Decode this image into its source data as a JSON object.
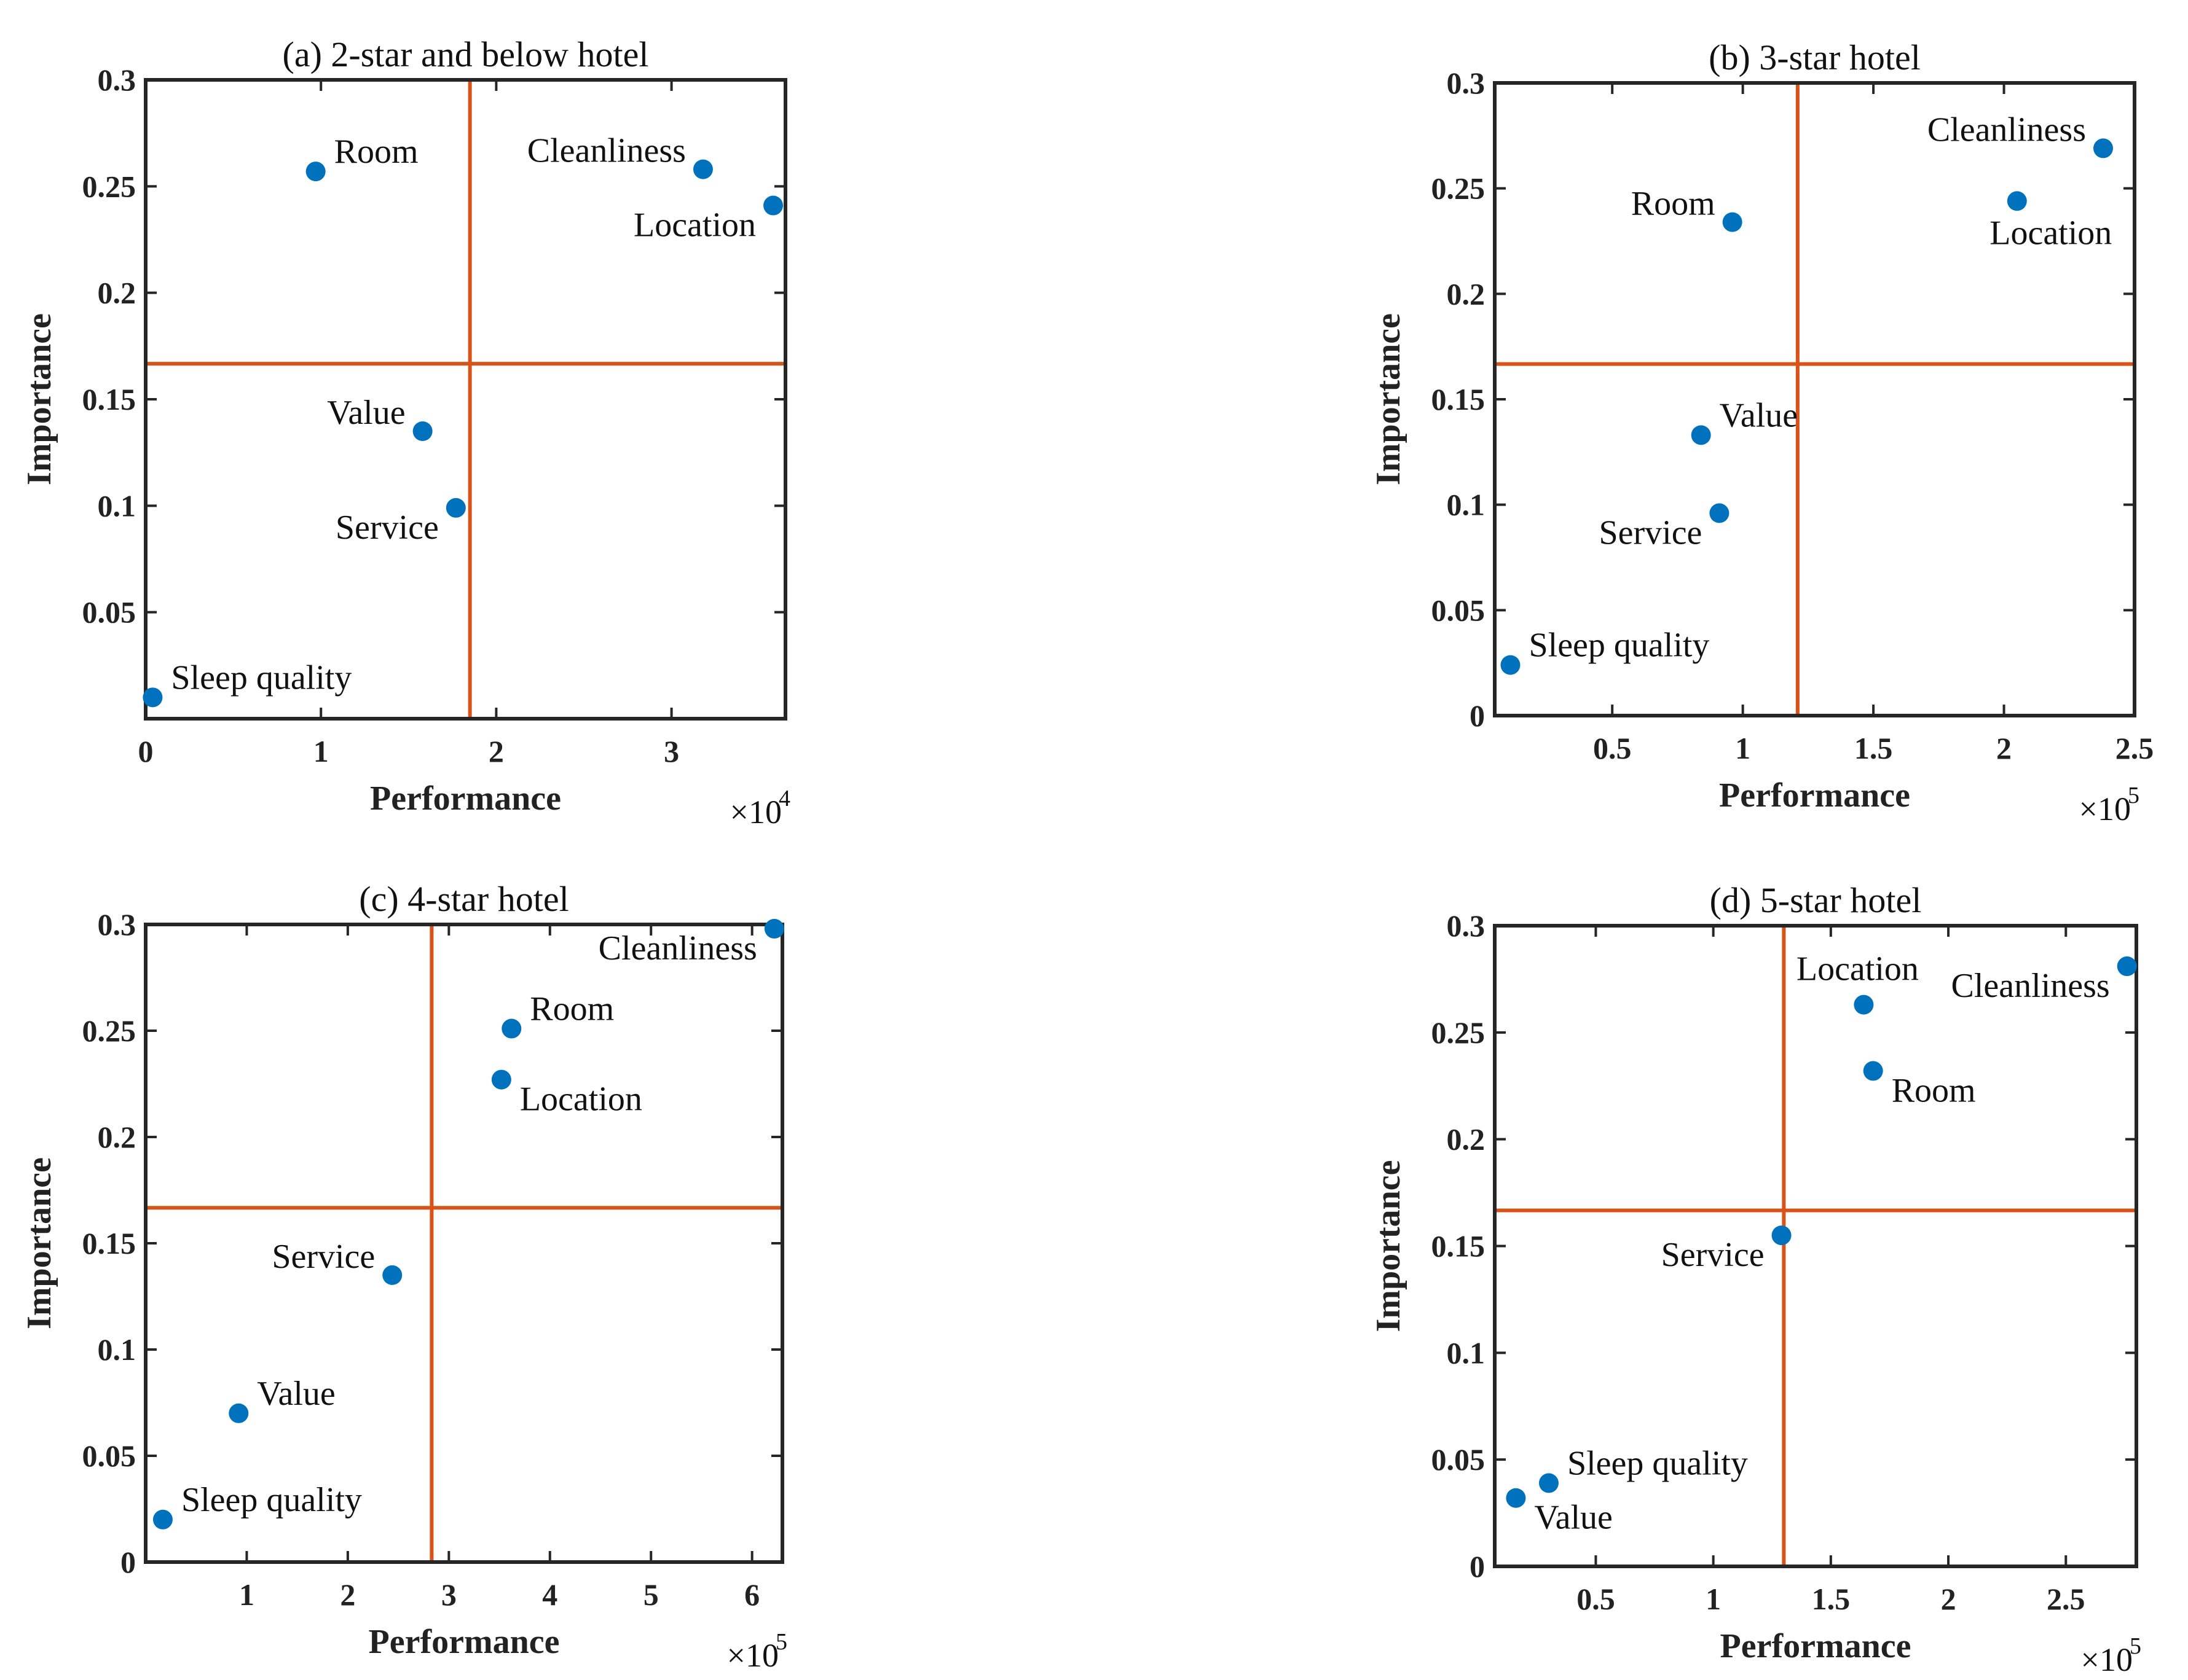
{
  "colors": {
    "point": "#0072BD",
    "reference_line": "#D95319",
    "axes": "#262626"
  },
  "chart_data": [
    {
      "type": "scatter",
      "title": "(a) 2-star and below hotel",
      "xlabel": "Performance",
      "ylabel": "Importance",
      "x_multiplier": {
        "base": "×10",
        "exponent": "4"
      },
      "xlim": [
        0,
        3.65
      ],
      "ylim": [
        0,
        0.3
      ],
      "xticks": [
        0,
        1,
        2,
        3
      ],
      "xtick_labels": [
        "0",
        "1",
        "2",
        "3"
      ],
      "yticks": [
        0.05,
        0.1,
        0.15,
        0.2,
        0.25,
        0.3
      ],
      "ytick_labels": [
        "0.05",
        "0.1",
        "0.15",
        "0.2",
        "0.25",
        "0.3"
      ],
      "ref_x": 1.85,
      "ref_y": 0.1667,
      "points": [
        {
          "label": "Room",
          "x": 0.97,
          "y": 0.257,
          "label_pos": "ne"
        },
        {
          "label": "Cleanliness",
          "x": 3.18,
          "y": 0.258,
          "label_pos": "nw"
        },
        {
          "label": "Location",
          "x": 3.58,
          "y": 0.241,
          "label_pos": "sw"
        },
        {
          "label": "Value",
          "x": 1.58,
          "y": 0.135,
          "label_pos": "nw"
        },
        {
          "label": "Service",
          "x": 1.77,
          "y": 0.099,
          "label_pos": "sw"
        },
        {
          "label": "Sleep quality",
          "x": 0.04,
          "y": 0.01,
          "label_pos": "ne"
        }
      ]
    },
    {
      "type": "scatter",
      "title": "(b) 3-star hotel",
      "xlabel": "Performance",
      "ylabel": "Importance",
      "x_multiplier": {
        "base": "×10",
        "exponent": "5"
      },
      "xlim": [
        0.05,
        2.5
      ],
      "ylim": [
        0,
        0.3
      ],
      "xticks": [
        0.5,
        1,
        1.5,
        2,
        2.5
      ],
      "xtick_labels": [
        "0.5",
        "1",
        "1.5",
        "2",
        "2.5"
      ],
      "yticks": [
        0,
        0.05,
        0.1,
        0.15,
        0.2,
        0.25,
        0.3
      ],
      "ytick_labels": [
        "0",
        "0.05",
        "0.1",
        "0.15",
        "0.2",
        "0.25",
        "0.3"
      ],
      "ref_x": 1.21,
      "ref_y": 0.1667,
      "points": [
        {
          "label": "Room",
          "x": 0.96,
          "y": 0.234,
          "label_pos": "nw"
        },
        {
          "label": "Cleanliness",
          "x": 2.38,
          "y": 0.269,
          "label_pos": "nw"
        },
        {
          "label": "Location",
          "x": 2.05,
          "y": 0.244,
          "label_pos": "s"
        },
        {
          "label": "Value",
          "x": 0.84,
          "y": 0.133,
          "label_pos": "ne"
        },
        {
          "label": "Service",
          "x": 0.91,
          "y": 0.096,
          "label_pos": "sw"
        },
        {
          "label": "Sleep quality",
          "x": 0.11,
          "y": 0.024,
          "label_pos": "ne"
        }
      ]
    },
    {
      "type": "scatter",
      "title": "(c) 4-star hotel",
      "xlabel": "Performance",
      "ylabel": "Importance",
      "x_multiplier": {
        "base": "×10",
        "exponent": "5"
      },
      "xlim": [
        0,
        6.3
      ],
      "ylim": [
        0,
        0.3
      ],
      "xticks": [
        1,
        2,
        3,
        4,
        5,
        6
      ],
      "xtick_labels": [
        "1",
        "2",
        "3",
        "4",
        "5",
        "6"
      ],
      "yticks": [
        0,
        0.05,
        0.1,
        0.15,
        0.2,
        0.25,
        0.3
      ],
      "ytick_labels": [
        "0",
        "0.05",
        "0.1",
        "0.15",
        "0.2",
        "0.25",
        "0.3"
      ],
      "ref_x": 2.83,
      "ref_y": 0.1667,
      "points": [
        {
          "label": "Cleanliness",
          "x": 6.22,
          "y": 0.298,
          "label_pos": "sw"
        },
        {
          "label": "Room",
          "x": 3.62,
          "y": 0.251,
          "label_pos": "ne"
        },
        {
          "label": "Location",
          "x": 3.52,
          "y": 0.227,
          "label_pos": "se"
        },
        {
          "label": "Service",
          "x": 2.44,
          "y": 0.135,
          "label_pos": "nw"
        },
        {
          "label": "Value",
          "x": 0.92,
          "y": 0.07,
          "label_pos": "ne"
        },
        {
          "label": "Sleep quality",
          "x": 0.17,
          "y": 0.02,
          "label_pos": "ne"
        }
      ]
    },
    {
      "type": "scatter",
      "title": "(d) 5-star hotel",
      "xlabel": "Performance",
      "ylabel": "Importance",
      "x_multiplier": {
        "base": "×10",
        "exponent": "5"
      },
      "xlim": [
        0.07,
        2.8
      ],
      "ylim": [
        0,
        0.3
      ],
      "xticks": [
        0.5,
        1,
        1.5,
        2,
        2.5
      ],
      "xtick_labels": [
        "0.5",
        "1",
        "1.5",
        "2",
        "2.5"
      ],
      "yticks": [
        0,
        0.05,
        0.1,
        0.15,
        0.2,
        0.25,
        0.3
      ],
      "ytick_labels": [
        "0",
        "0.05",
        "0.1",
        "0.15",
        "0.2",
        "0.25",
        "0.3"
      ],
      "ref_x": 1.3,
      "ref_y": 0.1667,
      "points": [
        {
          "label": "Cleanliness",
          "x": 2.76,
          "y": 0.281,
          "label_pos": "sw"
        },
        {
          "label": "Location",
          "x": 1.64,
          "y": 0.263,
          "label_pos": "n"
        },
        {
          "label": "Room",
          "x": 1.68,
          "y": 0.232,
          "label_pos": "se"
        },
        {
          "label": "Service",
          "x": 1.29,
          "y": 0.155,
          "label_pos": "sw"
        },
        {
          "label": "Sleep quality",
          "x": 0.3,
          "y": 0.039,
          "label_pos": "ne"
        },
        {
          "label": "Value",
          "x": 0.16,
          "y": 0.032,
          "label_pos": "se"
        }
      ]
    }
  ]
}
